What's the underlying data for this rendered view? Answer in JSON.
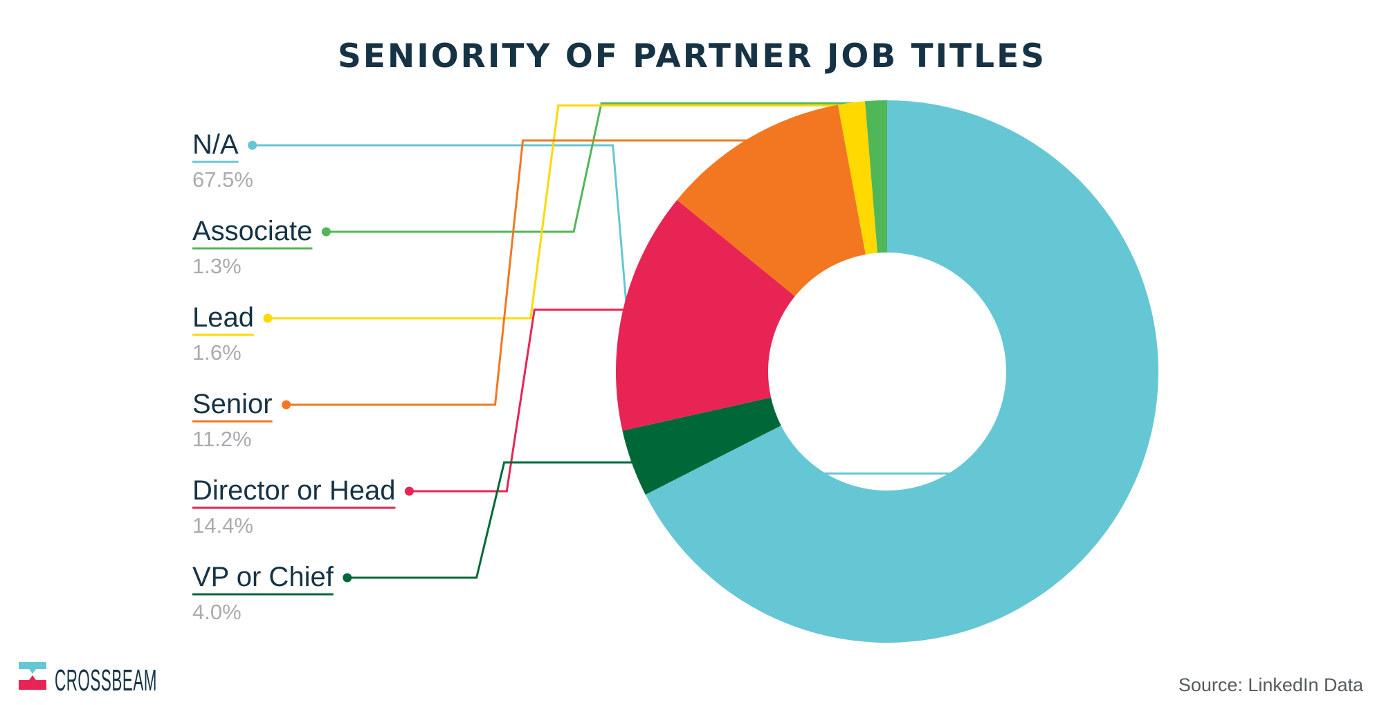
{
  "chart_data": {
    "type": "pie",
    "title": "SENIORITY OF PARTNER JOB TITLES",
    "style": "donut",
    "start_angle_deg": 0,
    "direction": "clockwise",
    "slices": [
      {
        "label": "N/A",
        "value": 67.5,
        "value_label": "67.5%",
        "color": "#65c7d4"
      },
      {
        "label": "VP or Chief",
        "value": 4.0,
        "value_label": "4.0%",
        "color": "#006838"
      },
      {
        "label": "Director or Head",
        "value": 14.4,
        "value_label": "14.4%",
        "color": "#e82454"
      },
      {
        "label": "Senior",
        "value": 11.2,
        "value_label": "11.2%",
        "color": "#f37720"
      },
      {
        "label": "Lead",
        "value": 1.6,
        "value_label": "1.6%",
        "color": "#ffd900"
      },
      {
        "label": "Associate",
        "value": 1.3,
        "value_label": "1.3%",
        "color": "#50b758"
      }
    ],
    "legend_order": [
      "N/A",
      "Associate",
      "Lead",
      "Senior",
      "Director or Head",
      "VP or Chief"
    ]
  },
  "branding": {
    "logo_text": "CROSSBEAM",
    "logo_colors": {
      "top": "#65c7d4",
      "bottom": "#e82454"
    }
  },
  "source": "Source: LinkedIn Data"
}
